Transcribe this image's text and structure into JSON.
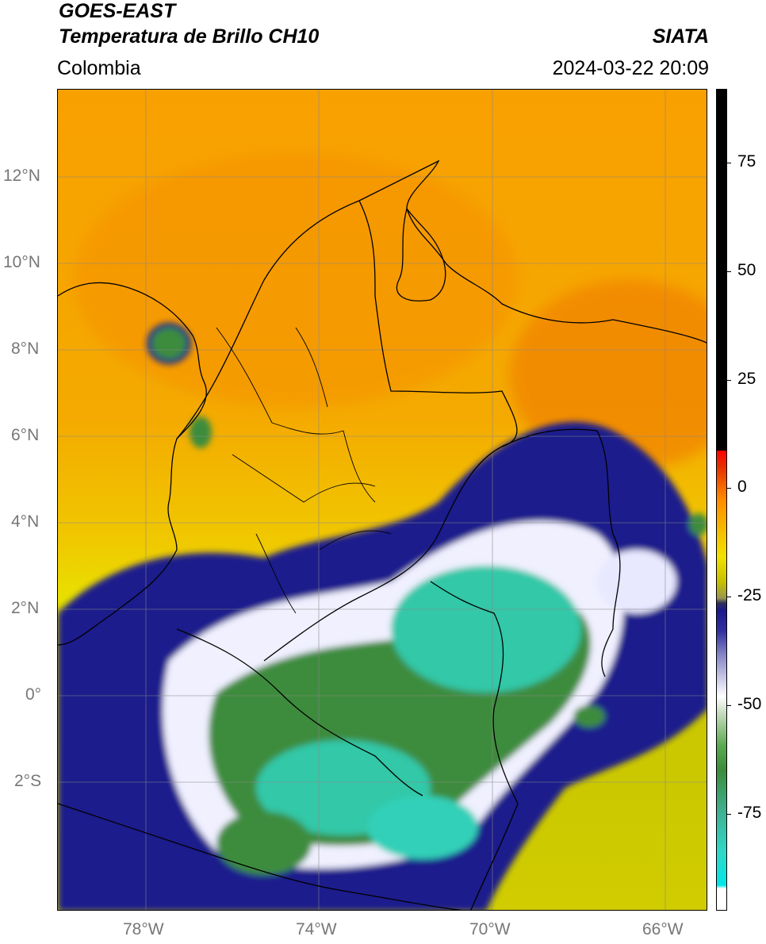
{
  "header": {
    "title_line_1": "GOES-EAST",
    "title_line_2": "Temperatura de Brillo CH10",
    "region": "Colombia",
    "organization": "SIATA",
    "timestamp": "2024-03-22 20:09"
  },
  "axes": {
    "latitude_labels": [
      "12°N",
      "10°N",
      "8°N",
      "6°N",
      "4°N",
      "2°N",
      "0°",
      "2°S"
    ],
    "longitude_labels": [
      "78°W",
      "74°W",
      "70°W",
      "66°W"
    ]
  },
  "colorbar": {
    "labels": [
      "75",
      "50",
      "25",
      "0",
      "-25",
      "-50",
      "-75"
    ],
    "colors": {
      "warm_top": "#000000",
      "red": "#ff0000",
      "orange": "#f5a000",
      "yellow": "#f2e200",
      "navy": "#1a1a8c",
      "white": "#ffffff",
      "green": "#3c8c3c",
      "cyan": "#00e6e6"
    }
  }
}
